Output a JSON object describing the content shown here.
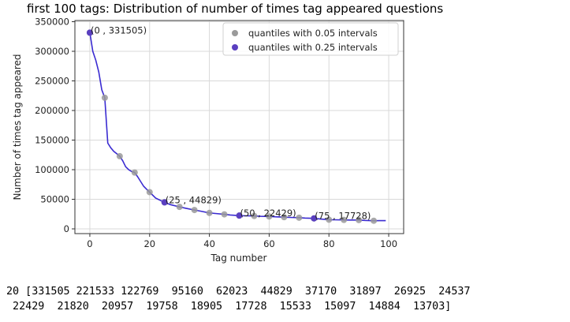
{
  "chart_data": {
    "type": "line",
    "title": "first 100 tags: Distribution of number of times tag appeared questions",
    "xlabel": "Tag number",
    "ylabel": "Number of times tag appeared",
    "xlim": [
      -5,
      105
    ],
    "ylim": [
      -8000,
      352000
    ],
    "xticks": [
      0,
      20,
      40,
      60,
      80,
      100
    ],
    "yticks": [
      0,
      50000,
      100000,
      150000,
      200000,
      250000,
      300000,
      350000
    ],
    "grid": true,
    "legend_position": "top-right",
    "line": {
      "color": "#3a2bd1",
      "x": [
        0,
        1,
        2,
        3,
        4,
        5,
        6,
        7,
        8,
        9,
        10,
        11,
        12,
        13,
        14,
        15,
        16,
        17,
        18,
        19,
        20,
        22,
        25,
        27,
        30,
        32,
        35,
        37,
        40,
        42,
        45,
        47,
        50,
        52,
        55,
        57,
        60,
        62,
        65,
        67,
        70,
        72,
        75,
        77,
        80,
        82,
        85,
        87,
        90,
        92,
        95,
        97,
        99
      ],
      "y": [
        331505,
        300000,
        285000,
        265000,
        235000,
        221533,
        145000,
        137000,
        131000,
        127000,
        122769,
        115000,
        105000,
        100000,
        97000,
        95160,
        88000,
        80000,
        72000,
        67000,
        62023,
        52000,
        44829,
        41000,
        37170,
        35000,
        31897,
        30000,
        26925,
        26000,
        24537,
        23500,
        22429,
        22000,
        21820,
        21200,
        20957,
        20400,
        19758,
        19300,
        18905,
        18300,
        17728,
        16800,
        15533,
        15300,
        15097,
        15000,
        14884,
        14300,
        13703,
        13800,
        13900
      ]
    },
    "series": [
      {
        "name": "quantiles with 0.05 intervals",
        "color": "#9a9a9a",
        "x": [
          0,
          5,
          10,
          15,
          20,
          25,
          30,
          35,
          40,
          45,
          50,
          55,
          60,
          65,
          70,
          75,
          80,
          85,
          90,
          95
        ],
        "y": [
          331505,
          221533,
          122769,
          95160,
          62023,
          44829,
          37170,
          31897,
          26925,
          24537,
          22429,
          21820,
          20957,
          19758,
          18905,
          17728,
          15533,
          15097,
          14884,
          13703
        ]
      },
      {
        "name": "quantiles with 0.25 intervals",
        "color": "#5a3fc0",
        "x": [
          0,
          25,
          50,
          75
        ],
        "y": [
          331505,
          44829,
          22429,
          17728
        ]
      }
    ],
    "annotations": [
      {
        "text": "(0 , 331505)",
        "x": 0,
        "y": 331505
      },
      {
        "text": "(25 , 44829)",
        "x": 25,
        "y": 44829
      },
      {
        "text": "(50 , 22429)",
        "x": 50,
        "y": 22429
      },
      {
        "text": "(75 , 17728)",
        "x": 75,
        "y": 17728
      }
    ]
  },
  "output": {
    "line1": "20 [331505 221533 122769  95160  62023  44829  37170  31897  26925  24537",
    "line2": " 22429  21820  20957  19758  18905  17728  15533  15097  14884  13703]"
  }
}
